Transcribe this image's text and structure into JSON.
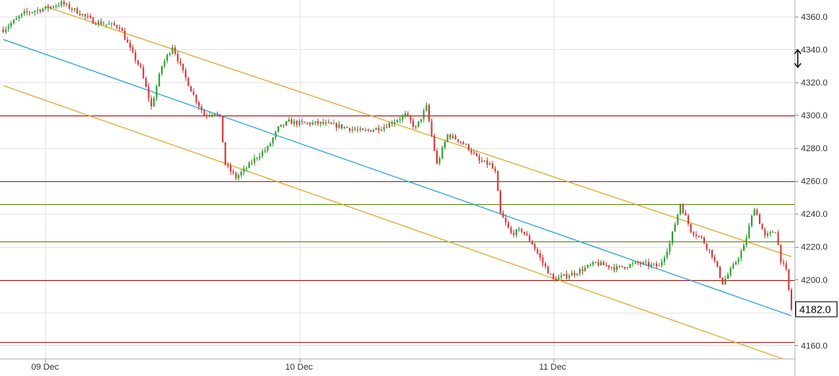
{
  "chart_data": {
    "type": "candlestick",
    "y_axis": {
      "position": "right",
      "min": 4152,
      "max": 4370,
      "ticks": [
        4360,
        4340,
        4320,
        4300,
        4280,
        4260,
        4240,
        4220,
        4200,
        4180,
        4160
      ]
    },
    "y_tick_labels": [
      "4360.0",
      "4340.0",
      "4320.0",
      "4300.0",
      "4280.0",
      "4260.0",
      "4240.0",
      "4220.0",
      "4200.0",
      "4180.0",
      "4160.0"
    ],
    "x_axis": {
      "start": "2024-12-08T20:00",
      "end": "2024-12-11T22:30",
      "ticks": [
        "2024-12-09T00:00",
        "2024-12-10T00:00",
        "2024-12-11T00:00"
      ],
      "tick_labels": [
        "09 Dec",
        "10 Dec",
        "11 Dec"
      ]
    },
    "grid": true,
    "last_price": "4182.0",
    "colors": {
      "up": "#2e9e2e",
      "down": "#d43a3a",
      "channel": "#e0a82e",
      "midline": "#2aa4d6",
      "resistance": "#b22222",
      "support": "#5a8a1a",
      "grid": "#e6e6e6"
    },
    "horizontal_levels": [
      {
        "value": 4299.5,
        "color": "#b22222"
      },
      {
        "value": 4260.0,
        "color": "#b22222"
      },
      {
        "value": 4246.0,
        "color": "#5a8a1a"
      },
      {
        "value": 4223.0,
        "color": "#5a8a1a"
      },
      {
        "value": 4199.5,
        "color": "#b22222"
      },
      {
        "value": 4162.0,
        "color": "#b22222"
      }
    ],
    "trend_lines": [
      {
        "name": "upper-channel",
        "color": "#e0a82e",
        "from": {
          "x": "2024-12-09T00:00",
          "y": 4366
        },
        "to": {
          "x": "2024-12-11T22:30",
          "y": 4214
        }
      },
      {
        "name": "mid-line",
        "color": "#2aa4d6",
        "from": {
          "x": "2024-12-08T20:00",
          "y": 4346
        },
        "to": {
          "x": "2024-12-11T22:30",
          "y": 4178
        }
      },
      {
        "name": "lower-channel",
        "color": "#e0a82e",
        "from": {
          "x": "2024-12-08T20:00",
          "y": 4318
        },
        "to": {
          "x": "2024-12-11T22:30",
          "y": 4150
        }
      }
    ],
    "series_path": [
      [
        "2024-12-08T20:00",
        4352
      ],
      [
        "2024-12-08T22:00",
        4362
      ],
      [
        "2024-12-09T00:00",
        4365
      ],
      [
        "2024-12-09T01:30",
        4368
      ],
      [
        "2024-12-09T03:00",
        4363
      ],
      [
        "2024-12-09T04:30",
        4357
      ],
      [
        "2024-12-09T06:00",
        4355
      ],
      [
        "2024-12-09T07:00",
        4354
      ],
      [
        "2024-12-09T08:00",
        4340
      ],
      [
        "2024-12-09T09:00",
        4328
      ],
      [
        "2024-12-09T10:00",
        4305
      ],
      [
        "2024-12-09T11:00",
        4330
      ],
      [
        "2024-12-09T12:00",
        4342
      ],
      [
        "2024-12-09T13:00",
        4326
      ],
      [
        "2024-12-09T14:00",
        4312
      ],
      [
        "2024-12-09T15:00",
        4300
      ],
      [
        "2024-12-09T16:00",
        4302
      ],
      [
        "2024-12-09T16:30",
        4298
      ],
      [
        "2024-12-09T17:00",
        4270
      ],
      [
        "2024-12-09T18:00",
        4262
      ],
      [
        "2024-12-09T19:00",
        4268
      ],
      [
        "2024-12-09T20:00",
        4275
      ],
      [
        "2024-12-09T21:00",
        4280
      ],
      [
        "2024-12-09T22:00",
        4292
      ],
      [
        "2024-12-09T23:00",
        4296
      ],
      [
        "2024-12-10T00:00",
        4295
      ],
      [
        "2024-12-10T02:00",
        4295
      ],
      [
        "2024-12-10T04:00",
        4293
      ],
      [
        "2024-12-10T06:00",
        4290
      ],
      [
        "2024-12-10T08:00",
        4293
      ],
      [
        "2024-12-10T10:00",
        4300
      ],
      [
        "2024-12-10T11:00",
        4292
      ],
      [
        "2024-12-10T12:00",
        4305
      ],
      [
        "2024-12-10T13:00",
        4270
      ],
      [
        "2024-12-10T14:00",
        4288
      ],
      [
        "2024-12-10T15:00",
        4285
      ],
      [
        "2024-12-10T16:00",
        4280
      ],
      [
        "2024-12-10T17:00",
        4272
      ],
      [
        "2024-12-10T18:00",
        4270
      ],
      [
        "2024-12-10T18:30",
        4265
      ],
      [
        "2024-12-10T19:00",
        4240
      ],
      [
        "2024-12-10T20:00",
        4228
      ],
      [
        "2024-12-10T21:00",
        4230
      ],
      [
        "2024-12-10T22:00",
        4222
      ],
      [
        "2024-12-10T23:00",
        4210
      ],
      [
        "2024-12-11T00:00",
        4200
      ],
      [
        "2024-12-11T02:00",
        4204
      ],
      [
        "2024-12-11T04:00",
        4210
      ],
      [
        "2024-12-11T06:00",
        4207
      ],
      [
        "2024-12-11T08:00",
        4210
      ],
      [
        "2024-12-11T10:00",
        4208
      ],
      [
        "2024-12-11T11:00",
        4222
      ],
      [
        "2024-12-11T12:00",
        4246
      ],
      [
        "2024-12-11T13:00",
        4230
      ],
      [
        "2024-12-11T14:00",
        4225
      ],
      [
        "2024-12-11T15:00",
        4215
      ],
      [
        "2024-12-11T16:00",
        4198
      ],
      [
        "2024-12-11T17:00",
        4208
      ],
      [
        "2024-12-11T18:00",
        4220
      ],
      [
        "2024-12-11T19:00",
        4244
      ],
      [
        "2024-12-11T20:00",
        4226
      ],
      [
        "2024-12-11T21:00",
        4230
      ],
      [
        "2024-12-11T21:30",
        4212
      ],
      [
        "2024-12-11T22:00",
        4205
      ],
      [
        "2024-12-11T22:30",
        4182
      ]
    ]
  }
}
